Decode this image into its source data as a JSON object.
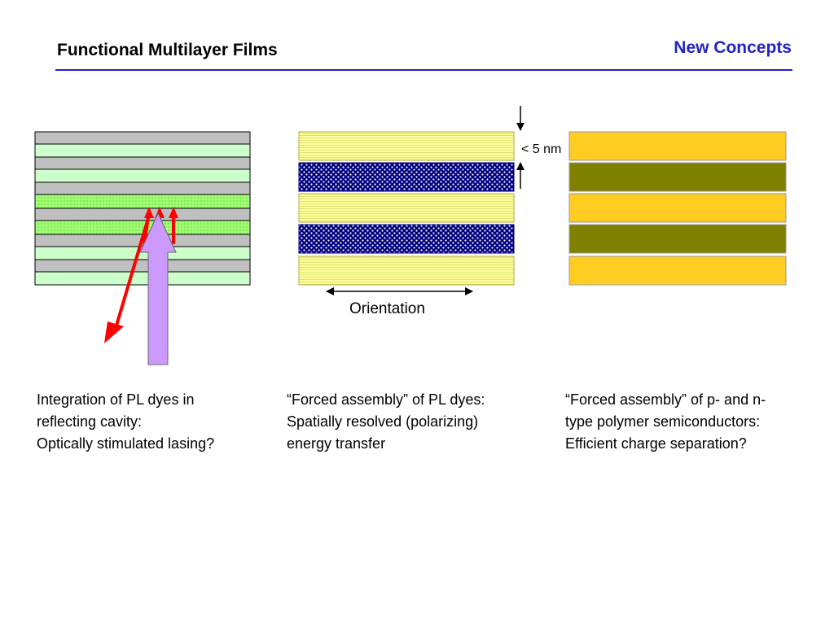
{
  "header": {
    "title": "Functional Multilayer Films",
    "section": "New Concepts"
  },
  "diagram": {
    "thickness_label": "< 5 nm",
    "orientation_label": "Orientation"
  },
  "captions": {
    "left": [
      "Integration of PL dyes in",
      "reflecting cavity:",
      "Optically stimulated lasing?"
    ],
    "middle": [
      "“Forced assembly” of PL dyes:",
      "Spatially resolved (polarizing)",
      "energy transfer"
    ],
    "right": [
      "“Forced assembly” of p- and n-",
      "type polymer semiconductors:",
      "Efficient charge separation?"
    ]
  },
  "colors": {
    "accent_blue": "#2323c8",
    "cavity_gray": "#c0c0c0",
    "cavity_green": "#ccffcc",
    "dye_green": "#99ff66",
    "dye_yellow": "#ffff99",
    "dye_navy": "#000080",
    "p_type_gold": "#ffcc22",
    "n_type_olive": "#808000",
    "laser_red": "#ff0000",
    "pump_violet": "#cc99ff"
  }
}
